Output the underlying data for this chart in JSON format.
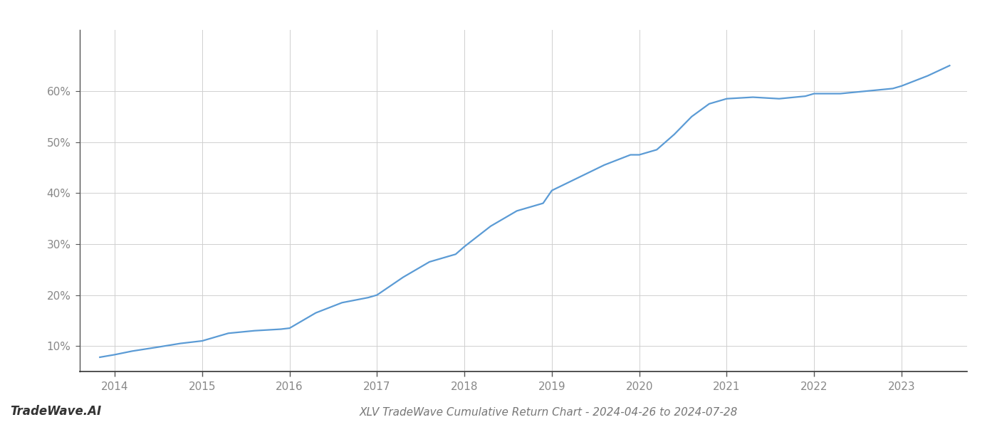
{
  "title": "XLV TradeWave Cumulative Return Chart - 2024-04-26 to 2024-07-28",
  "watermark": "TradeWave.AI",
  "line_color": "#5b9bd5",
  "background_color": "#ffffff",
  "grid_color": "#d0d0d0",
  "x_values": [
    2013.83,
    2014.0,
    2014.2,
    2014.5,
    2014.75,
    2015.0,
    2015.3,
    2015.6,
    2015.9,
    2016.0,
    2016.3,
    2016.6,
    2016.9,
    2017.0,
    2017.3,
    2017.6,
    2017.9,
    2018.0,
    2018.3,
    2018.6,
    2018.9,
    2019.0,
    2019.3,
    2019.6,
    2019.9,
    2020.0,
    2020.2,
    2020.4,
    2020.6,
    2020.8,
    2021.0,
    2021.3,
    2021.6,
    2021.9,
    2022.0,
    2022.3,
    2022.6,
    2022.9,
    2023.0,
    2023.3,
    2023.55
  ],
  "y_values": [
    7.8,
    8.3,
    9.0,
    9.8,
    10.5,
    11.0,
    12.5,
    13.0,
    13.3,
    13.5,
    16.5,
    18.5,
    19.5,
    20.0,
    23.5,
    26.5,
    28.0,
    29.5,
    33.5,
    36.5,
    38.0,
    40.5,
    43.0,
    45.5,
    47.5,
    47.5,
    48.5,
    51.5,
    55.0,
    57.5,
    58.5,
    58.8,
    58.5,
    59.0,
    59.5,
    59.5,
    60.0,
    60.5,
    61.0,
    63.0,
    65.0
  ],
  "xlim": [
    2013.6,
    2023.75
  ],
  "ylim": [
    5,
    72
  ],
  "yticks": [
    10,
    20,
    30,
    40,
    50,
    60
  ],
  "xticks": [
    2014,
    2015,
    2016,
    2017,
    2018,
    2019,
    2020,
    2021,
    2022,
    2023
  ],
  "xtick_labels": [
    "2014",
    "2015",
    "2016",
    "2017",
    "2018",
    "2019",
    "2020",
    "2021",
    "2022",
    "2023"
  ],
  "title_fontsize": 11,
  "tick_fontsize": 11,
  "watermark_fontsize": 12,
  "line_width": 1.6
}
